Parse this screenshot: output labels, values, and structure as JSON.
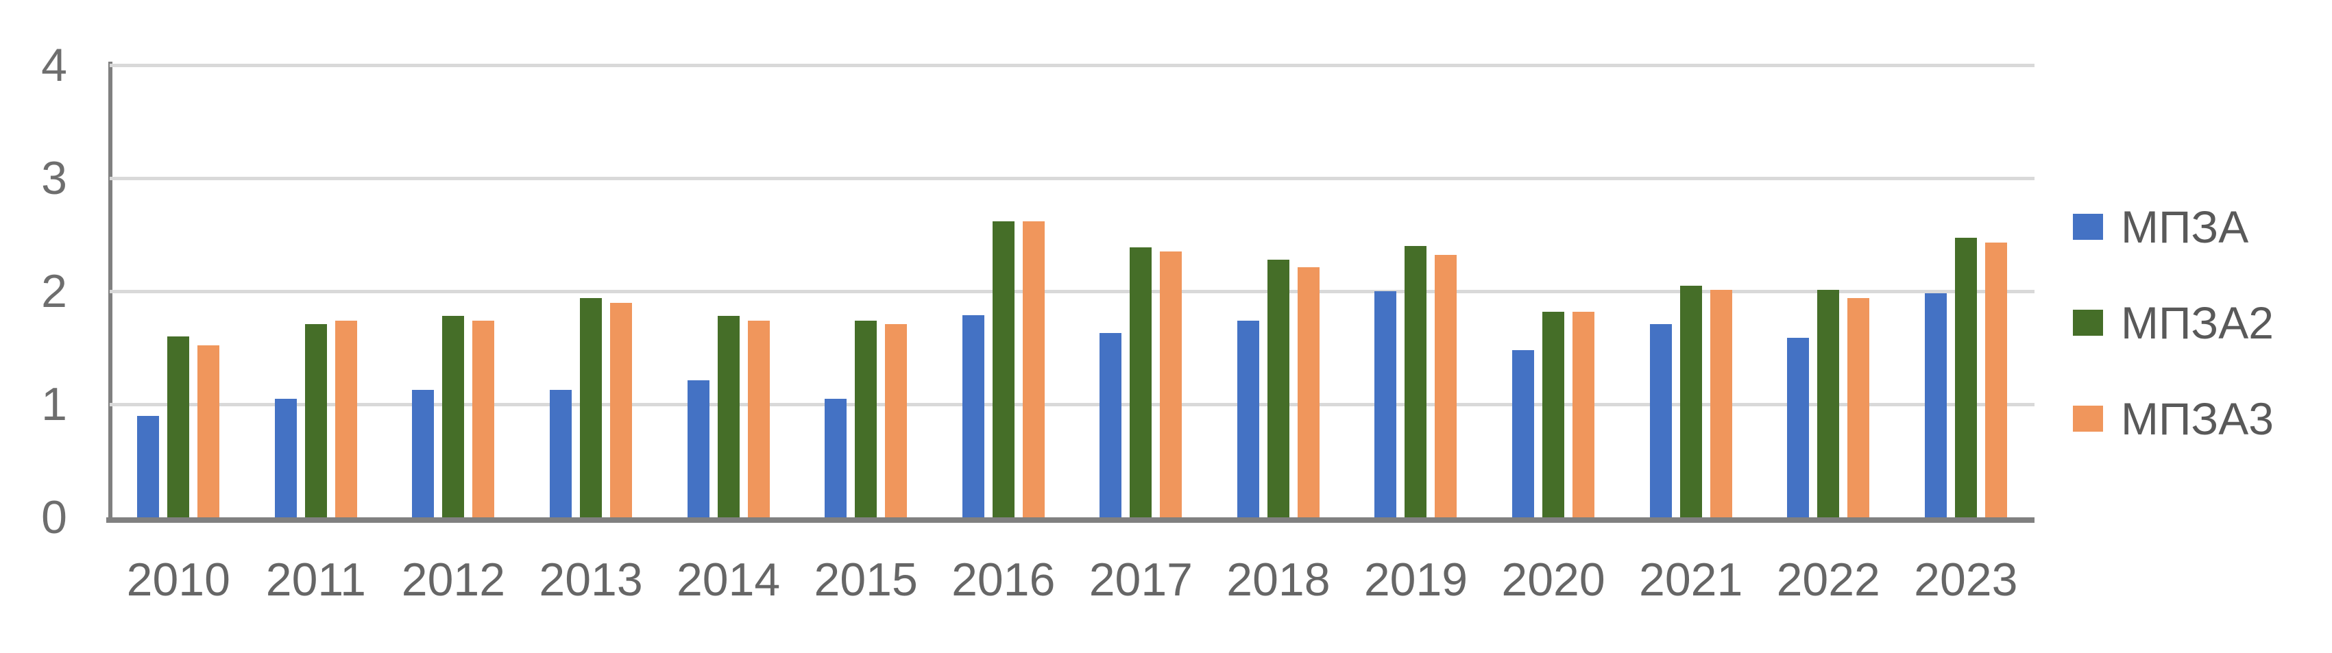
{
  "chart_data": {
    "type": "bar",
    "title": "",
    "xlabel": "",
    "ylabel": "",
    "categories": [
      "2010",
      "2011",
      "2012",
      "2013",
      "2014",
      "2015",
      "2016",
      "2017",
      "2018",
      "2019",
      "2020",
      "2021",
      "2022",
      "2023"
    ],
    "series": [
      {
        "name": "МПЗА",
        "color": "#4472C4",
        "values": [
          0.9,
          1.05,
          1.13,
          1.13,
          1.21,
          1.05,
          1.79,
          1.63,
          1.74,
          2.0,
          1.48,
          1.71,
          1.59,
          1.98
        ]
      },
      {
        "name": "МПЗА2",
        "color": "#456E28",
        "values": [
          1.6,
          1.71,
          1.78,
          1.94,
          1.78,
          1.74,
          2.62,
          2.39,
          2.28,
          2.4,
          1.82,
          2.05,
          2.01,
          2.47
        ]
      },
      {
        "name": "МПЗА3",
        "color": "#F0965C",
        "values": [
          1.52,
          1.74,
          1.74,
          1.9,
          1.74,
          1.71,
          2.62,
          2.35,
          2.21,
          2.32,
          1.82,
          2.01,
          1.94,
          2.43
        ]
      }
    ],
    "ylim": [
      0,
      4
    ],
    "yticks": [
      0,
      1,
      2,
      3,
      4
    ],
    "grid": true,
    "legend_position": "right"
  },
  "colors": {
    "axis": "#808080",
    "gridline": "#D9D9D9",
    "tick_text": "#666666",
    "legend_text": "#595959",
    "background": "#FFFFFF"
  }
}
